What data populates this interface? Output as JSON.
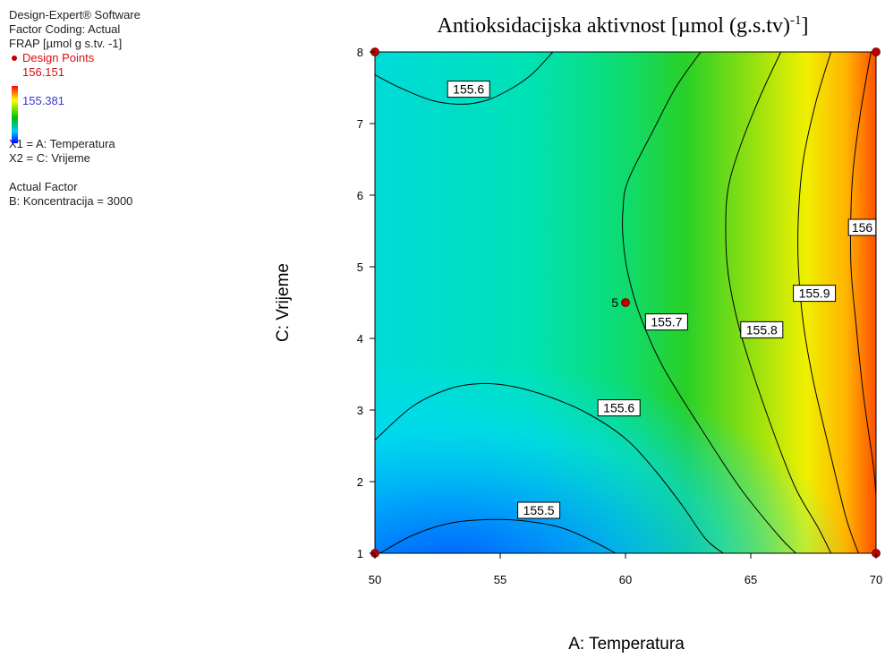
{
  "legend": {
    "software": "Design-Expert® Software",
    "coding": "Factor Coding: Actual",
    "response": "FRAP [µmol g s.tv. -1]",
    "design_points": "Design Points",
    "max_value": "156.151",
    "min_value": "155.381",
    "x1": "X1 = A: Temperatura",
    "x2": "X2 = C: Vrijeme",
    "actual_factor_heading": "Actual Factor",
    "actual_factor": "B: Koncentracija = 3000"
  },
  "colors": {
    "design_point": "#c00000",
    "low": "#0050ff",
    "high": "#ff5a00"
  },
  "chart_data": {
    "type": "contour",
    "title": "Antioksidacijska aktivnost [µmol (g.s.tv)",
    "title_superscript": "-1",
    "title_suffix": "]",
    "xlabel": "A: Temperatura",
    "ylabel": "C: Vrijeme",
    "xlim": [
      50,
      70
    ],
    "ylim": [
      1,
      8
    ],
    "x_ticks": [
      50,
      55,
      60,
      65,
      70
    ],
    "y_ticks": [
      1,
      2,
      3,
      4,
      5,
      6,
      7,
      8
    ],
    "grid": false,
    "response_range": [
      155.381,
      156.151
    ],
    "contours": [
      {
        "level": 155.5,
        "label": "155.5",
        "label_at": [
          55.7,
          1.6
        ],
        "points": [
          [
            50.2,
            1
          ],
          [
            51.5,
            1.25
          ],
          [
            53,
            1.42
          ],
          [
            54.5,
            1.47
          ],
          [
            56,
            1.45
          ],
          [
            57.5,
            1.35
          ],
          [
            58.8,
            1.15
          ],
          [
            59.6,
            1
          ]
        ]
      },
      {
        "level": 155.6,
        "label": "155.6",
        "label_at": [
          52.9,
          7.48
        ],
        "points": [
          [
            50,
            7.68
          ],
          [
            51,
            7.5
          ],
          [
            52.3,
            7.32
          ],
          [
            53.5,
            7.27
          ],
          [
            54.5,
            7.33
          ],
          [
            55.5,
            7.5
          ],
          [
            56.3,
            7.7
          ],
          [
            57.1,
            8
          ]
        ]
      },
      {
        "level": 155.6,
        "label": "155.6",
        "label_at": [
          58.9,
          3.03
        ],
        "points": [
          [
            50,
            2.58
          ],
          [
            51.5,
            3.05
          ],
          [
            53,
            3.3
          ],
          [
            54.3,
            3.37
          ],
          [
            55.5,
            3.33
          ],
          [
            57,
            3.18
          ],
          [
            58.5,
            2.95
          ],
          [
            60,
            2.6
          ],
          [
            61.2,
            2.15
          ],
          [
            62.3,
            1.65
          ],
          [
            63.2,
            1.2
          ],
          [
            63.9,
            1
          ]
        ]
      },
      {
        "level": 155.7,
        "label": "155.7",
        "label_at": [
          60.8,
          4.23
        ],
        "points": [
          [
            63,
            8
          ],
          [
            62,
            7.5
          ],
          [
            61.1,
            6.9
          ],
          [
            60.1,
            6.2
          ],
          [
            59.9,
            5.8
          ],
          [
            59.9,
            5.4
          ],
          [
            60.1,
            4.9
          ],
          [
            60.6,
            4.3
          ],
          [
            61.5,
            3.6
          ],
          [
            63,
            2.75
          ],
          [
            64.6,
            1.9
          ],
          [
            66.1,
            1.25
          ],
          [
            66.8,
            1
          ]
        ]
      },
      {
        "level": 155.8,
        "label": "155.8",
        "label_at": [
          64.6,
          4.12
        ],
        "points": [
          [
            66.2,
            8
          ],
          [
            65.4,
            7.4
          ],
          [
            64.6,
            6.7
          ],
          [
            64.1,
            6.1
          ],
          [
            64,
            5.5
          ],
          [
            64.1,
            4.9
          ],
          [
            64.5,
            4.2
          ],
          [
            65.1,
            3.5
          ],
          [
            66,
            2.6
          ],
          [
            66.8,
            1.9
          ],
          [
            67.7,
            1.35
          ],
          [
            68.2,
            1
          ]
        ]
      },
      {
        "level": 155.9,
        "label": "155.9",
        "label_at": [
          66.7,
          4.63
        ],
        "points": [
          [
            68.2,
            8
          ],
          [
            67.6,
            7.3
          ],
          [
            67.1,
            6.5
          ],
          [
            66.9,
            5.7
          ],
          [
            66.9,
            5.0
          ],
          [
            67.1,
            4.2
          ],
          [
            67.5,
            3.4
          ],
          [
            68.1,
            2.5
          ],
          [
            68.8,
            1.5
          ],
          [
            69.3,
            1
          ]
        ]
      },
      {
        "level": 156.0,
        "label": "156",
        "label_at": [
          68.9,
          5.55
        ],
        "points": [
          [
            69.8,
            8
          ],
          [
            69.4,
            7.2
          ],
          [
            69.1,
            6.4
          ],
          [
            69,
            5.8
          ],
          [
            69,
            5.0
          ],
          [
            69.2,
            4.2
          ],
          [
            69.5,
            3.2
          ],
          [
            69.9,
            2.2
          ],
          [
            70,
            1.8
          ]
        ]
      }
    ],
    "design_points": [
      {
        "x": 50,
        "y": 8,
        "label": ""
      },
      {
        "x": 70,
        "y": 8,
        "label": ""
      },
      {
        "x": 50,
        "y": 1,
        "label": ""
      },
      {
        "x": 70,
        "y": 1,
        "label": ""
      },
      {
        "x": 60,
        "y": 4.5,
        "label": "5"
      }
    ]
  }
}
